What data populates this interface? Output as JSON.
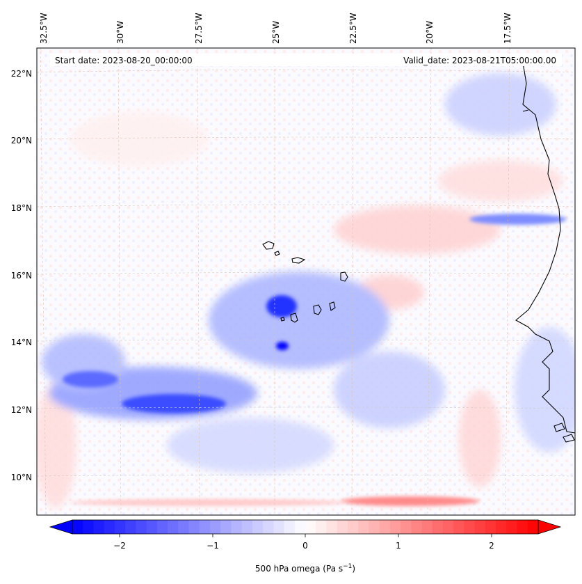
{
  "header": {
    "start_date": "Start date: 2023-08-20_00:00:00",
    "valid_date": "Valid_date: 2023-08-21T05:00:00.00"
  },
  "map": {
    "lon_labels": [
      "32.5°W",
      "30°W",
      "27.5°W",
      "25°W",
      "22.5°W",
      "20°W",
      "17.5°W"
    ],
    "lat_labels": [
      "22°N",
      "20°N",
      "18°N",
      "16°N",
      "14°N",
      "12°N",
      "10°N"
    ],
    "colors": {
      "coast": "#000000",
      "grid": "#d9c6b3"
    }
  },
  "colorbar": {
    "ticks": [
      "−2",
      "−1",
      "0",
      "1",
      "2"
    ],
    "label": "500 hPa omega (Pa s",
    "label_sup": "−1",
    "label_end": ")",
    "vmin": -2.75,
    "vmax": 2.75,
    "colors": {
      "min": "#0000ff",
      "mid": "#ffffff",
      "max": "#ff0000"
    }
  }
}
